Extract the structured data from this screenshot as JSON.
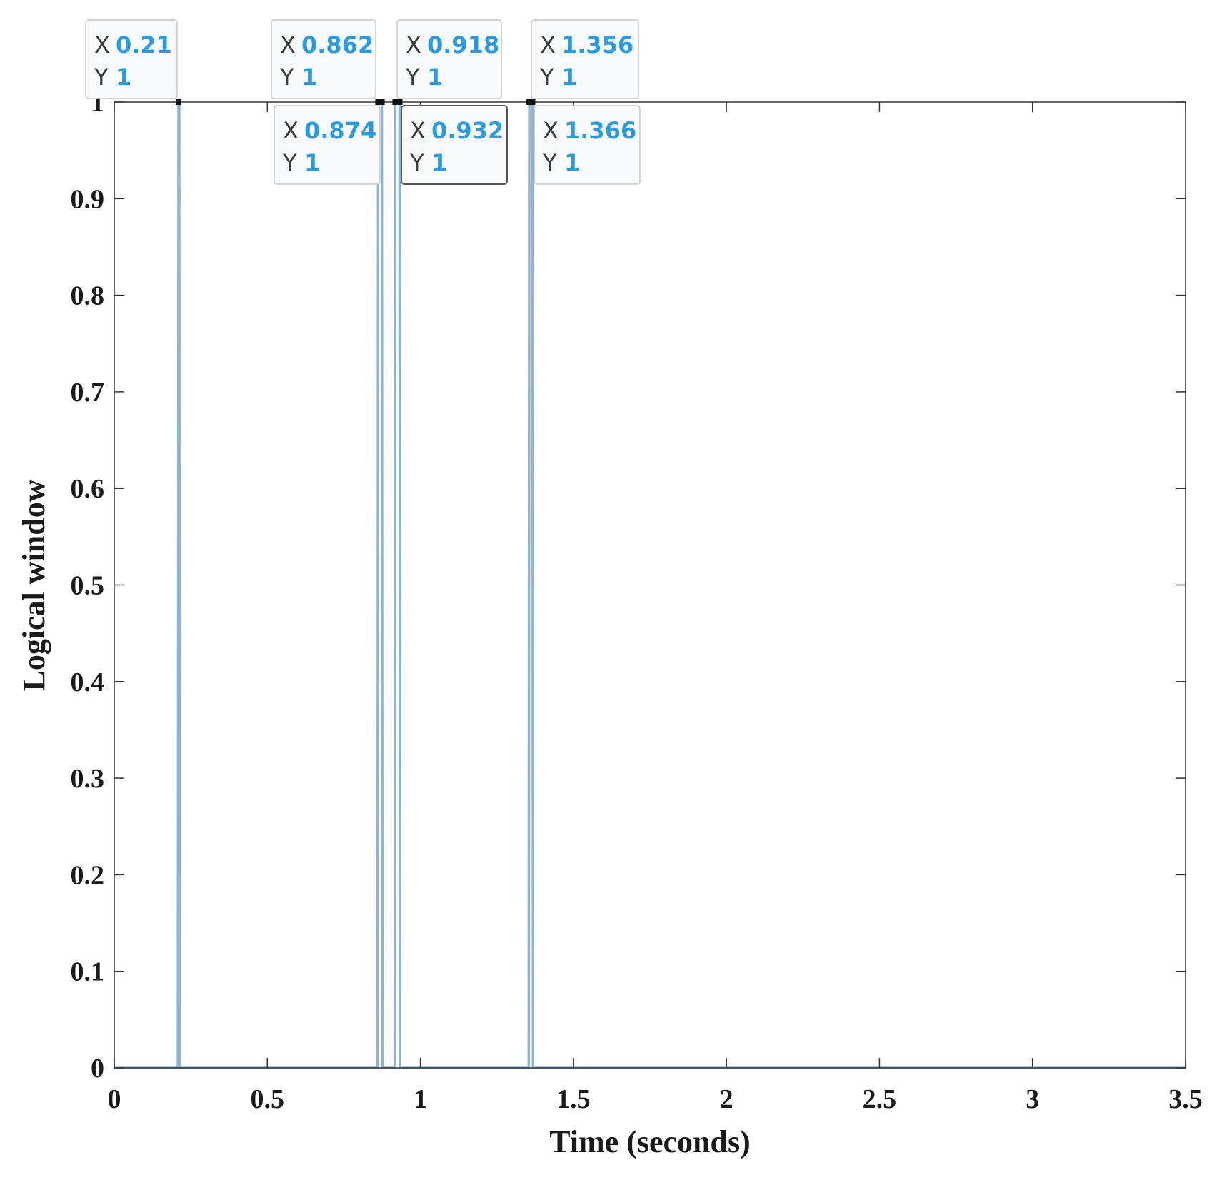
{
  "colors": {
    "signal": "#8db4d6",
    "axis": "#333333",
    "tick_value": "#2a9be0",
    "datatip_border_active": "#555555",
    "datatip_border": "#c9c9c9",
    "datatip_fill": "#f9fafc"
  },
  "chart_data": {
    "type": "line",
    "title": "",
    "xlabel": "Time (seconds)",
    "ylabel": "Logical window",
    "xlim": [
      0,
      3.5
    ],
    "ylim": [
      0,
      1
    ],
    "xticks": [
      "0",
      "0.5",
      "1",
      "1.5",
      "2",
      "2.5",
      "3",
      "3.5"
    ],
    "yticks": [
      "0",
      "0.1",
      "0.2",
      "0.3",
      "0.4",
      "0.5",
      "0.6",
      "0.7",
      "0.8",
      "0.9",
      "1"
    ],
    "grid": false,
    "series": [
      {
        "x": [
          0,
          0.208,
          0.21,
          0.212,
          0.214,
          0.86,
          0.862,
          0.874,
          0.876,
          0.916,
          0.918,
          0.932,
          0.934,
          1.354,
          1.356,
          1.366,
          1.368,
          3.5
        ],
        "y": [
          0,
          0,
          1,
          1,
          0,
          0,
          1,
          1,
          0,
          0,
          1,
          1,
          0,
          0,
          1,
          1,
          0,
          0
        ]
      }
    ],
    "datatips": [
      {
        "x_key": "X",
        "x_value": "0.21",
        "y_key": "Y",
        "y_value": "1",
        "x": 0.21,
        "y": 1,
        "row": "upper"
      },
      {
        "x_key": "X",
        "x_value": "0.862",
        "y_key": "Y",
        "y_value": "1",
        "x": 0.862,
        "y": 1,
        "row": "upper"
      },
      {
        "x_key": "X",
        "x_value": "0.918",
        "y_key": "Y",
        "y_value": "1",
        "x": 0.918,
        "y": 1,
        "row": "upper"
      },
      {
        "x_key": "X",
        "x_value": "1.356",
        "y_key": "Y",
        "y_value": "1",
        "x": 1.356,
        "y": 1,
        "row": "upper"
      },
      {
        "x_key": "X",
        "x_value": "0.874",
        "y_key": "Y",
        "y_value": "1",
        "x": 0.874,
        "y": 1,
        "row": "lower"
      },
      {
        "x_key": "X",
        "x_value": "0.932",
        "y_key": "Y",
        "y_value": "1",
        "x": 0.932,
        "y": 1,
        "row": "lower",
        "active": true
      },
      {
        "x_key": "X",
        "x_value": "1.366",
        "y_key": "Y",
        "y_value": "1",
        "x": 1.366,
        "y": 1,
        "row": "lower"
      }
    ]
  }
}
